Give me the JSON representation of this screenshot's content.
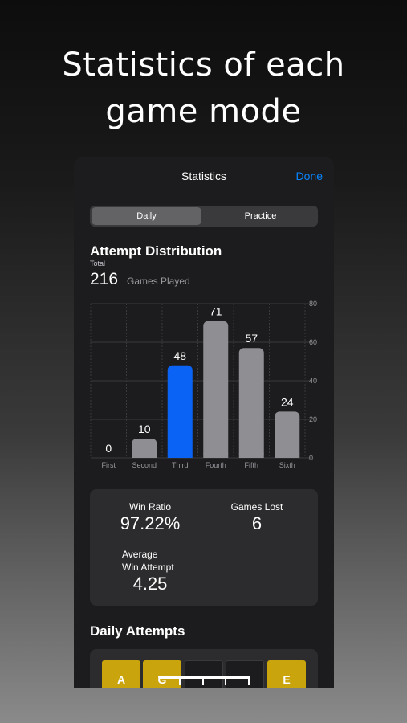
{
  "headline": {
    "line1": "Statistics of each",
    "line2": "game mode"
  },
  "nav": {
    "title": "Statistics",
    "done_label": "Done"
  },
  "segmented": {
    "daily": "Daily",
    "practice": "Practice"
  },
  "distribution": {
    "title": "Attempt Distribution",
    "total_label": "Total",
    "total_value": "216",
    "total_suffix": "Games Played"
  },
  "chart_data": {
    "type": "bar",
    "categories": [
      "First",
      "Second",
      "Third",
      "Fourth",
      "Fifth",
      "Sixth"
    ],
    "values": [
      0,
      10,
      48,
      71,
      57,
      24
    ],
    "highlight_index": 2,
    "ylim": [
      0,
      80
    ],
    "yticks": [
      0,
      20,
      40,
      60,
      80
    ],
    "y_axis_side": "right",
    "grid": true,
    "colors": {
      "bar": "#8e8e93",
      "highlight": "#0a63f5",
      "grid": "#3a3a3c",
      "label": "#98989d"
    }
  },
  "stats": {
    "win_ratio_label": "Win Ratio",
    "win_ratio_value": "97.22%",
    "games_lost_label": "Games Lost",
    "games_lost_value": "6",
    "avg_label_line1": "Average",
    "avg_label_line2": "Win Attempt",
    "avg_value": "4.25"
  },
  "daily_attempts": {
    "title": "Daily Attempts",
    "tiles": [
      {
        "letter": "A",
        "state": "yellow"
      },
      {
        "letter": "G",
        "state": "yellow"
      },
      {
        "letter": "",
        "state": "dark"
      },
      {
        "letter": "",
        "state": "dark"
      },
      {
        "letter": "E",
        "state": "yellow"
      }
    ]
  }
}
